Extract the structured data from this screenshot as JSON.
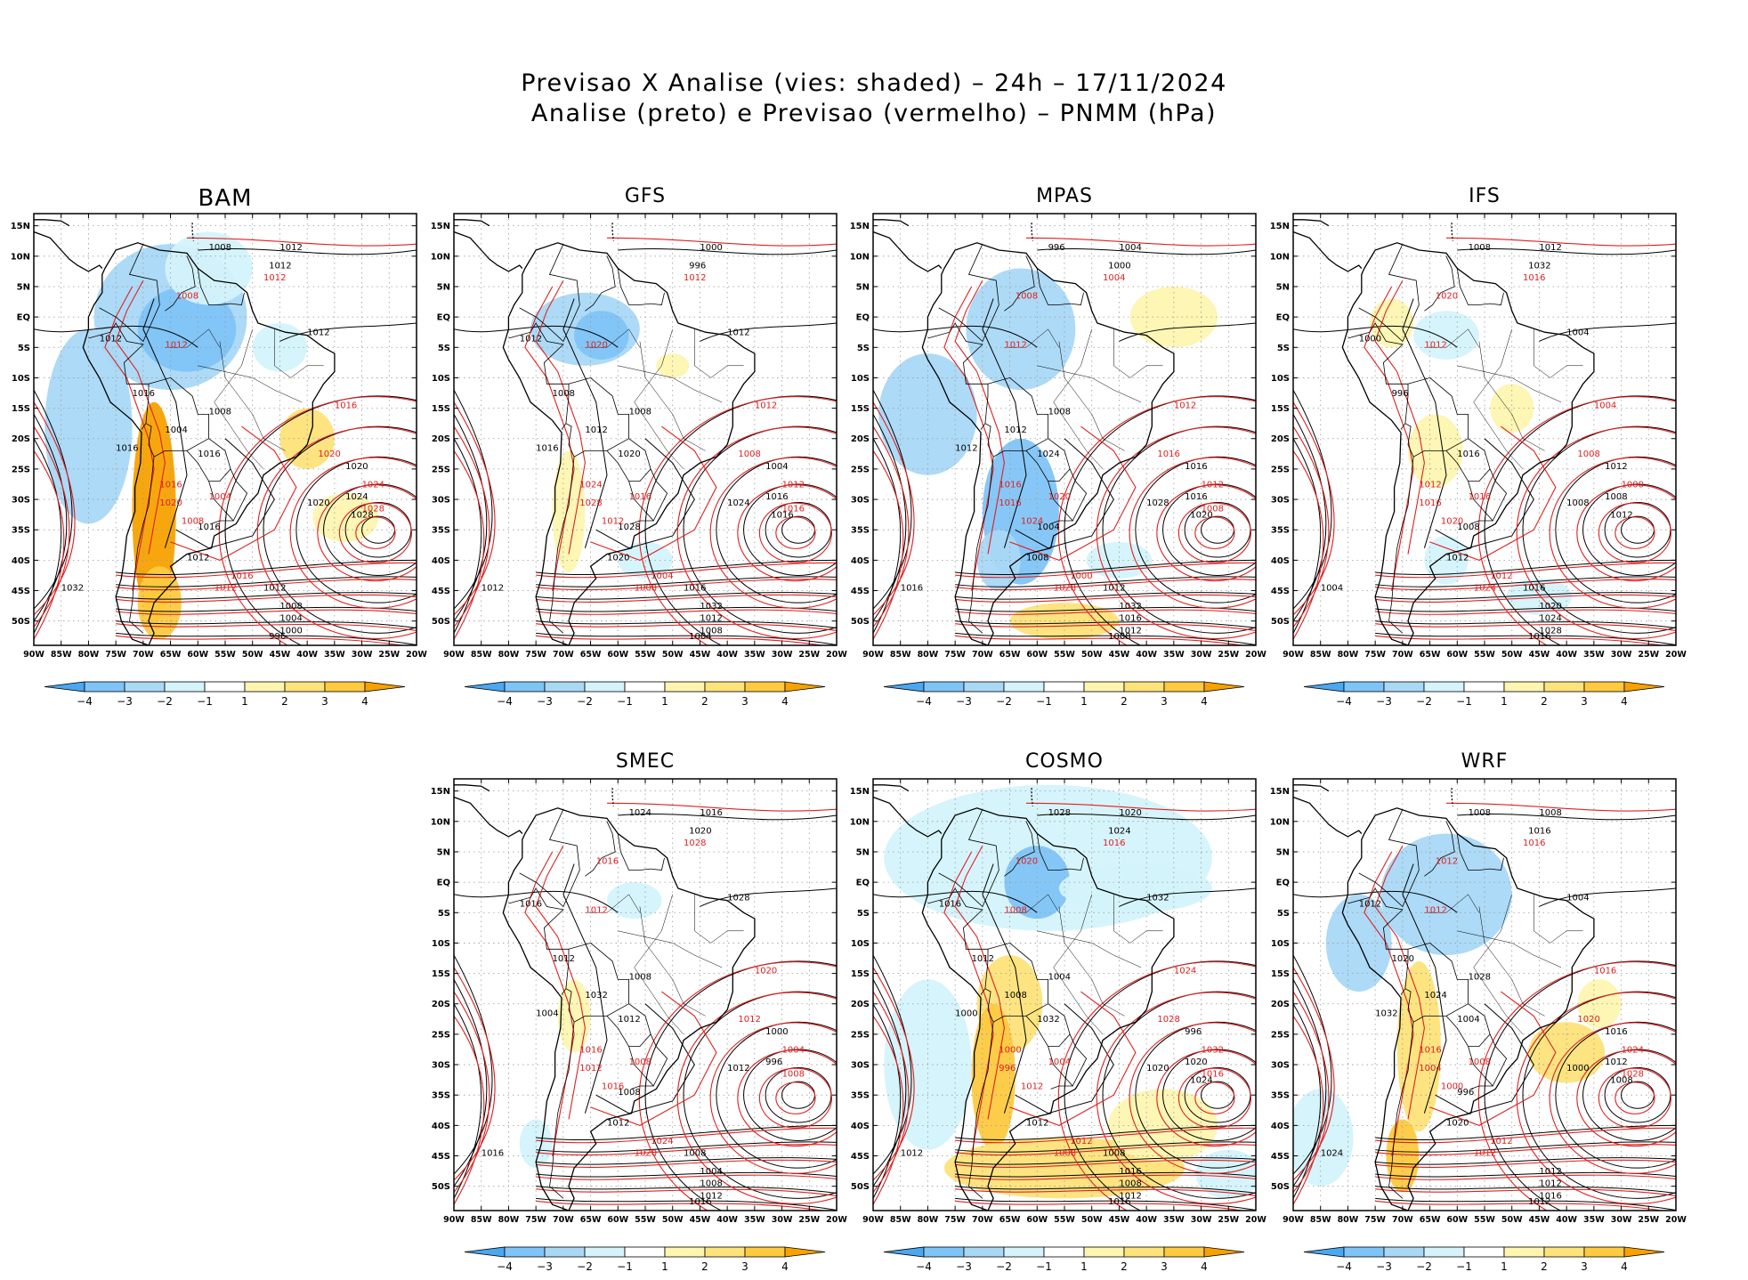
{
  "title": {
    "line1": "Previsao X Analise (vies: shaded) – 24h – 17/11/2024",
    "line2": "Analise (preto) e Previsao (vermelho) – PNMM (hPa)"
  },
  "axes": {
    "lat_labels": [
      "15N",
      "10N",
      "5N",
      "EQ",
      "5S",
      "10S",
      "15S",
      "20S",
      "25S",
      "30S",
      "35S",
      "40S",
      "45S",
      "50S"
    ],
    "lon_labels": [
      "90W",
      "85W",
      "80W",
      "75W",
      "70W",
      "65W",
      "60W",
      "55W",
      "50W",
      "45W",
      "40W",
      "35W",
      "30W",
      "25W",
      "20W"
    ]
  },
  "colorbar": {
    "labels": [
      "−4",
      "−3",
      "−2",
      "−1",
      "1",
      "2",
      "3",
      "4"
    ],
    "colors": [
      "#4aa8f0",
      "#7fc4f7",
      "#a9d8f5",
      "#d4f3fb",
      "#ffffff",
      "#fdf5b0",
      "#fde37a",
      "#fdca40",
      "#f7a200"
    ]
  },
  "colors": {
    "analysis": "#000000",
    "forecast": "#e02020",
    "coast": "#000000",
    "grid": "#9a9a9a"
  },
  "panels": [
    {
      "name": "BAM",
      "contours_black": [
        "1012",
        "1012",
        "1008",
        "1012",
        "1012",
        "1016",
        "1004",
        "1008",
        "1016",
        "1020",
        "1024",
        "1028",
        "1016",
        "1020",
        "1016",
        "1012",
        "1032",
        "1012",
        "1008",
        "1004",
        "1000",
        "996"
      ],
      "contours_red": [
        "1012",
        "1008",
        "1016",
        "1020",
        "1024",
        "1028",
        "1012",
        "1016",
        "1020",
        "1004",
        "1008",
        "1012",
        "1016"
      ]
    },
    {
      "name": "GFS",
      "contours_black": [
        "1012",
        "1012",
        "1008",
        "1012",
        "1008",
        "1016",
        "1004",
        "1016",
        "1016",
        "1020",
        "1024",
        "1028",
        "1020",
        "1012",
        "1016",
        "1032",
        "1012",
        "1008",
        "1004",
        "1000",
        "996"
      ],
      "contours_red": [
        "1012",
        "1008",
        "1012",
        "1016",
        "1020",
        "1024",
        "1028",
        "1016",
        "1012",
        "1008",
        "1004",
        "1012"
      ]
    },
    {
      "name": "MPAS",
      "contours_black": [
        "1012",
        "1008",
        "1012",
        "1016",
        "1016",
        "1020",
        "1024",
        "1028",
        "1004",
        "1008",
        "1016",
        "1012",
        "1032",
        "1016",
        "1012",
        "1008",
        "1004",
        "1000",
        "996"
      ],
      "contours_red": [
        "1012",
        "1008",
        "1012",
        "1016",
        "1016",
        "1020",
        "1024",
        "1028",
        "1000",
        "1004",
        "1008",
        "1012",
        "1016"
      ]
    },
    {
      "name": "IFS",
      "contours_black": [
        "1012",
        "1008",
        "1012",
        "1016",
        "1008",
        "1008",
        "1012",
        "1004",
        "1016",
        "1020",
        "1024",
        "1028",
        "1016",
        "1012",
        "1032",
        "1008",
        "1004",
        "1000",
        "996"
      ],
      "contours_red": [
        "1012",
        "1012",
        "1016",
        "1016",
        "1020",
        "1024",
        "1012",
        "1016",
        "1020",
        "1004",
        "1008",
        "1000"
      ]
    },
    {
      "name": "SMEC",
      "contours_black": [
        "1012",
        "1012",
        "1008",
        "1012",
        "1016",
        "1008",
        "1004",
        "1008",
        "1012",
        "1016",
        "1016",
        "1020",
        "1024",
        "1028",
        "1016",
        "1012",
        "1032",
        "1008",
        "1004",
        "1000",
        "996"
      ],
      "contours_red": [
        "1012",
        "1008",
        "1016",
        "1020",
        "1024",
        "1028",
        "1016",
        "1020",
        "1012",
        "1004",
        "1008",
        "1012",
        "1016"
      ]
    },
    {
      "name": "COSMO",
      "contours_black": [
        "1012",
        "1012",
        "1008",
        "1016",
        "1008",
        "1012",
        "1016",
        "1020",
        "1024",
        "1028",
        "1032",
        "1016",
        "1012",
        "1008",
        "1004",
        "1000",
        "996",
        "1020",
        "1024",
        "1032",
        "1020"
      ],
      "contours_red": [
        "1012",
        "1008",
        "1012",
        "1016",
        "1020",
        "1024",
        "1028",
        "1032",
        "1016",
        "1008",
        "1000",
        "996",
        "1004"
      ]
    },
    {
      "name": "WRF",
      "contours_black": [
        "1012",
        "1012",
        "1016",
        "1012",
        "1008",
        "1016",
        "1008",
        "1004",
        "1012",
        "1020",
        "1024",
        "1028",
        "1032",
        "1016",
        "1012",
        "1008",
        "1004",
        "1000",
        "996",
        "1020",
        "1024"
      ],
      "contours_red": [
        "1012",
        "1016",
        "1012",
        "1016",
        "1020",
        "1024",
        "1028",
        "1012",
        "1016",
        "1004",
        "1008",
        "1000",
        "1012"
      ]
    }
  ]
}
